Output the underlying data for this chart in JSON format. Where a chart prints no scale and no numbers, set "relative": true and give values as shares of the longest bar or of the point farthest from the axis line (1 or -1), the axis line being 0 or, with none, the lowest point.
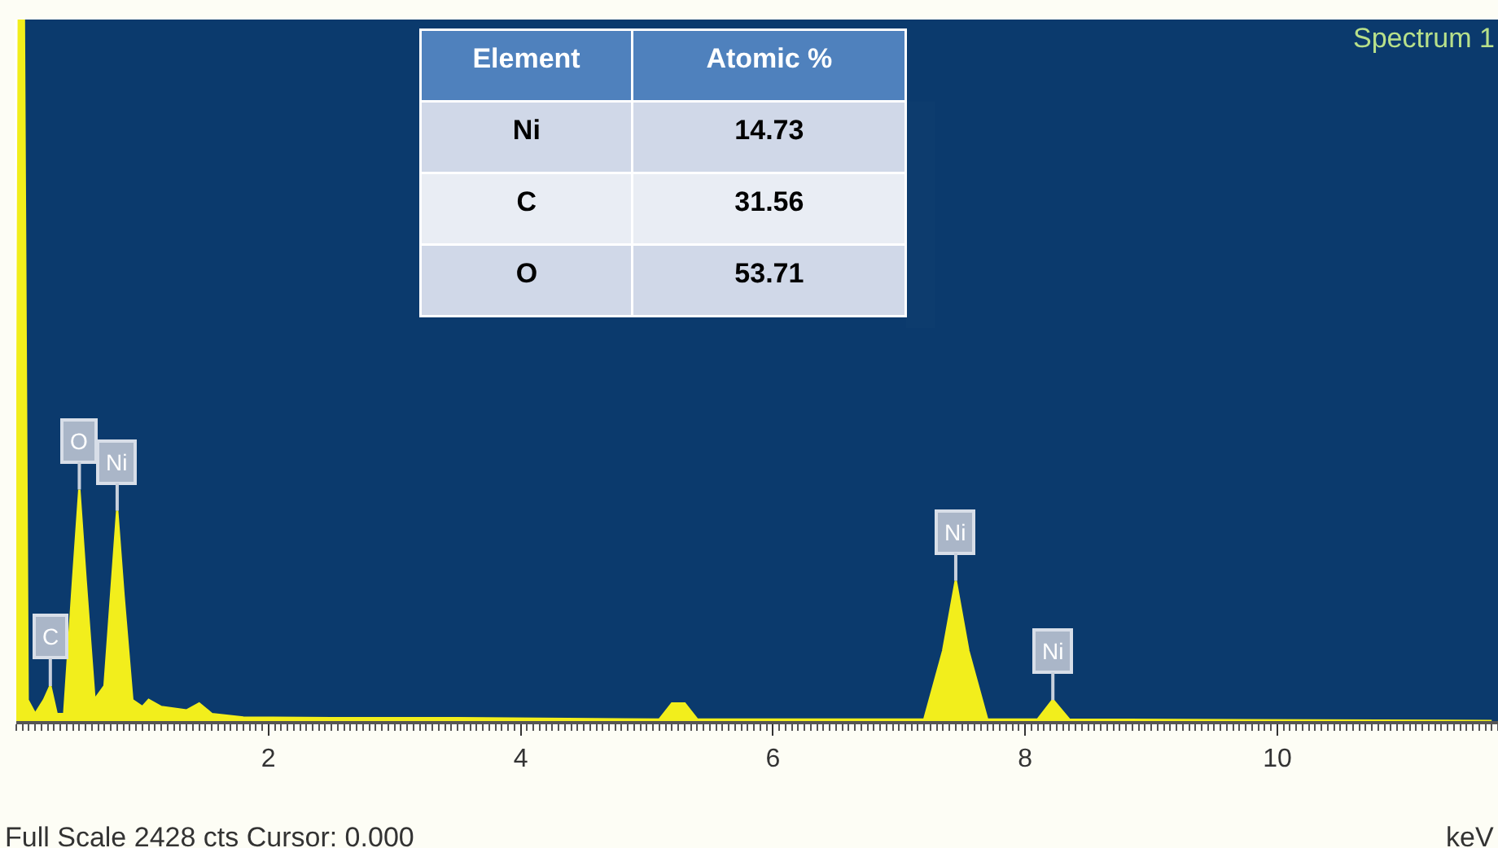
{
  "chart_data": {
    "type": "area",
    "relative": true,
    "xlabel": "keV",
    "x": [
      0.0,
      0.02,
      0.06,
      0.09,
      0.15,
      0.22,
      0.27,
      0.32,
      0.38,
      0.45,
      0.5,
      0.55,
      0.62,
      0.7,
      0.76,
      0.8,
      0.85,
      0.92,
      1.0,
      1.05,
      1.15,
      1.35,
      1.45,
      1.55,
      1.8,
      2.5,
      3.5,
      5.1,
      5.2,
      5.3,
      5.4,
      7.2,
      7.35,
      7.45,
      7.55,
      7.7,
      8.1,
      8.22,
      8.35,
      11.7
    ],
    "series": [
      {
        "color": "#f2ee1c",
        "values": [
          0.0,
          1.0,
          1.0,
          0.03,
          0.01,
          0.03,
          0.05,
          0.01,
          0.01,
          0.2,
          0.33,
          0.2,
          0.03,
          0.05,
          0.2,
          0.3,
          0.18,
          0.03,
          0.02,
          0.03,
          0.02,
          0.015,
          0.025,
          0.01,
          0.005,
          0.004,
          0.004,
          0.002,
          0.025,
          0.025,
          0.002,
          0.002,
          0.1,
          0.2,
          0.1,
          0.002,
          0.002,
          0.03,
          0.002,
          0.0
        ]
      }
    ],
    "xlim": [
      0,
      11.75
    ],
    "xticks": [
      2,
      4,
      6,
      8,
      10
    ],
    "grid": false,
    "legend": false,
    "annotations": [
      "Spectrum 1",
      "Full Scale 2428 cts Cursor: 0.000",
      "Element",
      "Atomic %",
      "Ni",
      "14.73",
      "C",
      "31.56",
      "O",
      "53.71",
      {
        "text": "C",
        "x": 0.27,
        "y": 0.05
      },
      {
        "text": "O",
        "x": 0.5,
        "y": 0.33
      },
      {
        "text": "Ni",
        "x": 0.8,
        "y": 0.3
      },
      {
        "text": "Ni",
        "x": 7.45,
        "y": 0.2
      },
      {
        "text": "Ni",
        "x": 8.22,
        "y": 0.03
      }
    ]
  }
}
